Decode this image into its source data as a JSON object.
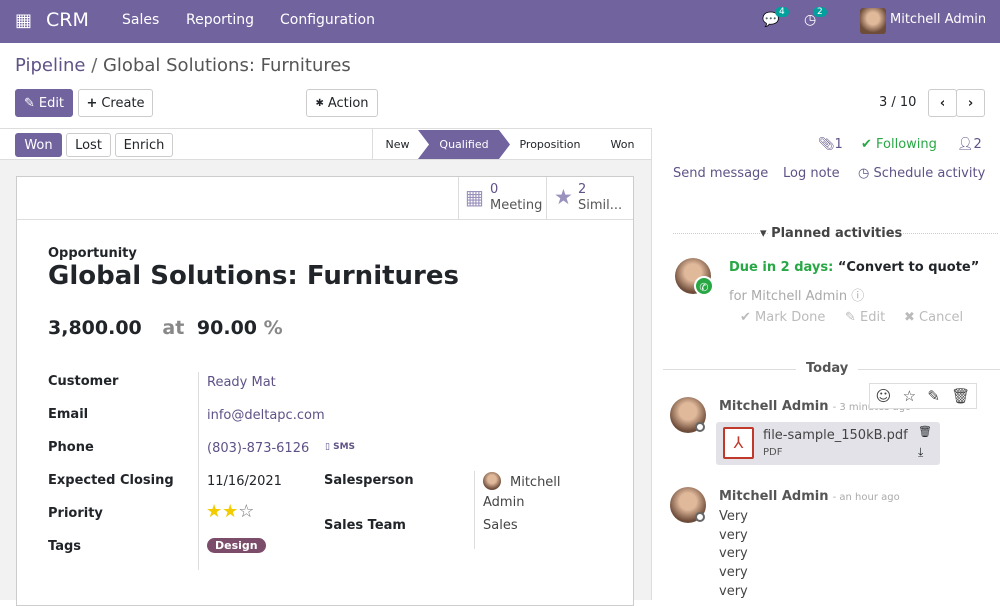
{
  "nav": {
    "app": "CRM",
    "menus": [
      "Sales",
      "Reporting",
      "Configuration"
    ],
    "messages_badge": "4",
    "activities_badge": "2",
    "user": "Mitchell Admin"
  },
  "breadcrumb": {
    "parent": "Pipeline",
    "current": "Global Solutions: Furnitures"
  },
  "toolbar": {
    "edit": "Edit",
    "create": "Create",
    "action": "Action",
    "pager": "3 / 10"
  },
  "status_buttons": [
    "Won",
    "Lost",
    "Enrich"
  ],
  "stages": [
    {
      "label": "New",
      "active": false
    },
    {
      "label": "Qualified",
      "active": true
    },
    {
      "label": "Proposition",
      "active": false
    },
    {
      "label": "Won",
      "active": false
    }
  ],
  "smart_buttons": [
    {
      "count": "0",
      "label": "Meeting",
      "icon": "calendar-icon"
    },
    {
      "count": "2",
      "label": "Simil...",
      "icon": "star-icon"
    }
  ],
  "form": {
    "type_label": "Opportunity",
    "name": "Global Solutions: Furnitures",
    "revenue": "3,800.00",
    "at": "at",
    "probability": "90.00",
    "percent": "%",
    "customer_label": "Customer",
    "customer": "Ready Mat",
    "email_label": "Email",
    "email": "info@deltapc.com",
    "phone_label": "Phone",
    "phone": "(803)-873-6126",
    "sms": "SMS",
    "closing_label": "Expected Closing",
    "closing": "11/16/2021",
    "priority_label": "Priority",
    "priority": 2,
    "priority_max": 3,
    "tags_label": "Tags",
    "tag": "Design",
    "salesperson_label": "Salesperson",
    "salesperson": "Mitchell Admin",
    "team_label": "Sales Team",
    "team": "Sales"
  },
  "chatter": {
    "attachments": "1",
    "following": "Following",
    "followers": "2",
    "send_message": "Send message",
    "log_note": "Log note",
    "schedule": "Schedule activity",
    "planned": "Planned activities",
    "due": "Due in 2 days:",
    "activity": "“Convert to quote”",
    "for": "for Mitchell Admin",
    "mark_done": "Mark Done",
    "edit": "Edit",
    "cancel": "Cancel",
    "today": "Today",
    "messages": [
      {
        "author": "Mitchell Admin",
        "time": "- 3 minutes ago",
        "file": "file-sample_150kB.pdf",
        "file_type": "PDF"
      },
      {
        "author": "Mitchell Admin",
        "time": "- an hour ago",
        "lines": [
          "Very",
          "very",
          "very",
          "very",
          "very"
        ]
      }
    ]
  },
  "colors": {
    "brand": "#71639e",
    "success": "#28a745",
    "star": "#f3cc00",
    "tag": "#7c4d6b"
  }
}
